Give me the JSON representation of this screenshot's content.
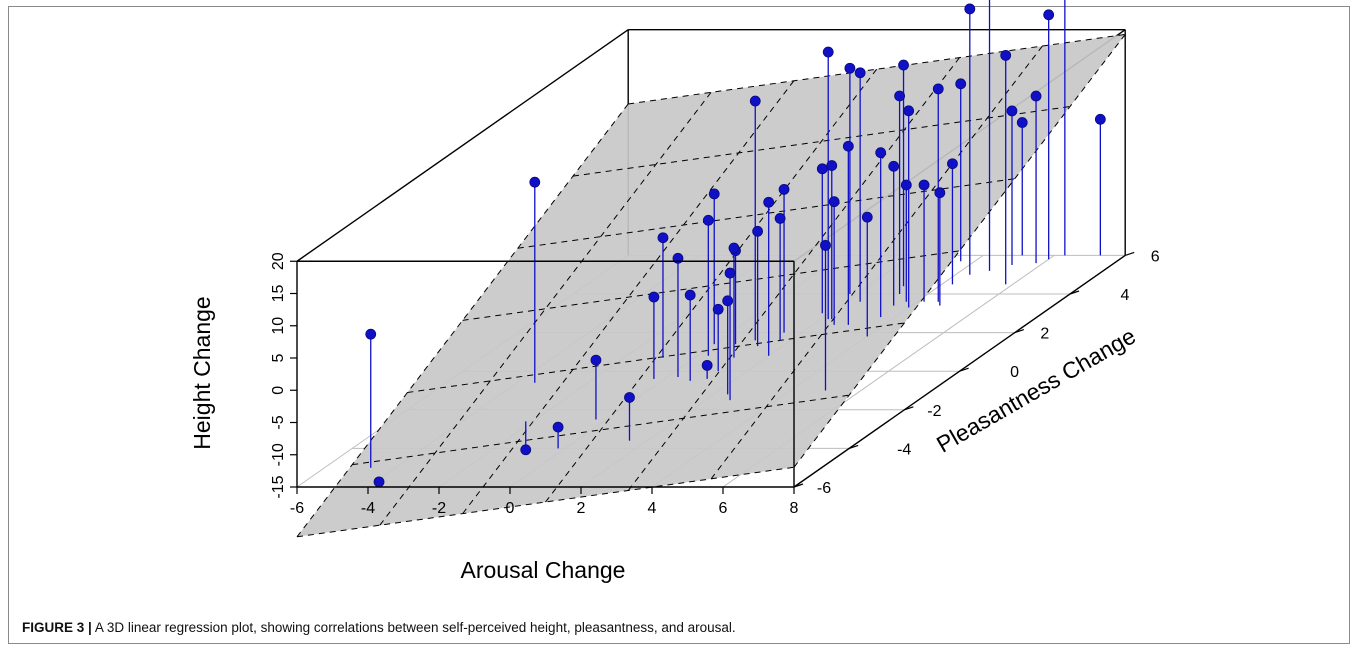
{
  "caption": {
    "label": "FIGURE 3 |",
    "text": "A 3D linear regression plot, showing correlations between self-perceived height, pleasantness, and arousal."
  },
  "colors": {
    "points": "#1010c8",
    "point_edge": "#0a0a7a",
    "plane": "#c8c8c8",
    "grid": "#bdbdbd",
    "box": "#000000"
  },
  "chart_data": {
    "type": "scatter",
    "subtype": "3d-scatter-with-regression-plane",
    "xlabel": "Arousal Change",
    "ylabel": "Pleasantness Change",
    "zlabel": "Height Change",
    "xlim": [
      -6,
      8
    ],
    "ylim": [
      -6,
      6
    ],
    "zlim": [
      -15,
      20
    ],
    "x_ticks": [
      "-6",
      "-4",
      "-2",
      "0",
      "2",
      "4",
      "6",
      "8"
    ],
    "y_ticks": [
      "-6",
      "-4",
      "-2",
      "0",
      "2",
      "4",
      "6"
    ],
    "z_ticks": [
      "-15",
      "-10",
      "-5",
      "0",
      "5",
      "10",
      "15",
      "20"
    ],
    "grid": true,
    "regression_plane": {
      "intercept": -2.5,
      "slope_x": 0.77,
      "slope_y": 2.6
    },
    "points": [
      {
        "x": -4.7,
        "y": -5.0,
        "z": 5.7
      },
      {
        "x": -3.5,
        "y": -0.6,
        "z": 16.1
      },
      {
        "x": -4.0,
        "y": -5.6,
        "z": -15.4
      },
      {
        "x": -2.2,
        "y": -2.6,
        "z": -19.4
      },
      {
        "x": -0.3,
        "y": -0.4,
        "z": -2.3
      },
      {
        "x": 1.2,
        "y": -0.4,
        "z": -12.9
      },
      {
        "x": 0.6,
        "y": 1.4,
        "z": -0.5
      },
      {
        "x": 0.3,
        "y": -0.3,
        "z": 3.4
      },
      {
        "x": 1.0,
        "y": 1.6,
        "z": 22.1
      },
      {
        "x": 2.2,
        "y": 2.7,
        "z": 26.4
      },
      {
        "x": 2.4,
        "y": 3.6,
        "z": 20.5
      },
      {
        "x": 3.0,
        "y": 4.4,
        "z": 19.3
      },
      {
        "x": 2.0,
        "y": 0.8,
        "z": 8.8
      },
      {
        "x": 1.5,
        "y": 2.0,
        "z": 7.2
      },
      {
        "x": 0.3,
        "y": 0.8,
        "z": 6.0
      },
      {
        "x": -0.9,
        "y": 0.7,
        "z": 3.6
      },
      {
        "x": 0.0,
        "y": 1.4,
        "z": 8.3
      },
      {
        "x": 1.1,
        "y": 0.7,
        "z": 2.0
      },
      {
        "x": 1.7,
        "y": 1.6,
        "z": 3.9
      },
      {
        "x": 2.6,
        "y": 2.4,
        "z": 4.1
      },
      {
        "x": 3.5,
        "y": 3.4,
        "z": 6.6
      },
      {
        "x": 4.8,
        "y": 3.4,
        "z": 2.5
      },
      {
        "x": 3.7,
        "y": 3.6,
        "z": 3.1
      },
      {
        "x": 4.2,
        "y": 3.6,
        "z": 3.1
      },
      {
        "x": 4.3,
        "y": 4.5,
        "z": 3.7
      },
      {
        "x": 3.6,
        "y": 5.7,
        "z": 12.5
      },
      {
        "x": 5.2,
        "y": 5.5,
        "z": 8.9
      },
      {
        "x": 5.8,
        "y": 5.6,
        "z": 10.9
      },
      {
        "x": 1.8,
        "y": 3.0,
        "z": 7.4
      },
      {
        "x": 1.8,
        "y": 4.0,
        "z": 20.0
      },
      {
        "x": 3.2,
        "y": 4.0,
        "z": 15.7
      },
      {
        "x": 4.4,
        "y": 5.0,
        "z": 26.2
      },
      {
        "x": 4.8,
        "y": 5.2,
        "z": 28.0
      },
      {
        "x": 4.6,
        "y": 3.6,
        "z": 18.0
      },
      {
        "x": 3.0,
        "y": 2.4,
        "z": 12.7
      },
      {
        "x": 6.3,
        "y": 6.0,
        "z": 28.5
      },
      {
        "x": 6.0,
        "y": 5.8,
        "z": 22.9
      },
      {
        "x": 5.1,
        "y": 6.0,
        "z": 5.6
      },
      {
        "x": 7.3,
        "y": 6.0,
        "z": 6.1
      },
      {
        "x": 5.0,
        "y": -1.0,
        "z": 7.5
      },
      {
        "x": 5.8,
        "y": 4.5,
        "z": 20.5
      },
      {
        "x": 2.7,
        "y": -1.5,
        "z": 4.7
      },
      {
        "x": 2.4,
        "y": -1.2,
        "z": -0.5
      },
      {
        "x": -0.3,
        "y": -2.5,
        "z": -5.8
      },
      {
        "x": 1.5,
        "y": -3.6,
        "z": -8.3
      },
      {
        "x": 4.0,
        "y": 1.8,
        "z": 3.5
      },
      {
        "x": 4.0,
        "y": 3.3,
        "z": 15.5
      },
      {
        "x": 3.6,
        "y": 2.8,
        "z": 10.5
      },
      {
        "x": 2.3,
        "y": 2.7,
        "z": 8.8
      },
      {
        "x": 1.3,
        "y": 1.3,
        "z": 2.8
      },
      {
        "x": 0.8,
        "y": -0.5,
        "z": -1.7
      },
      {
        "x": -0.2,
        "y": -4.0,
        "z": -11.7
      },
      {
        "x": 1.2,
        "y": 0.0,
        "z": -5.4
      }
    ]
  }
}
